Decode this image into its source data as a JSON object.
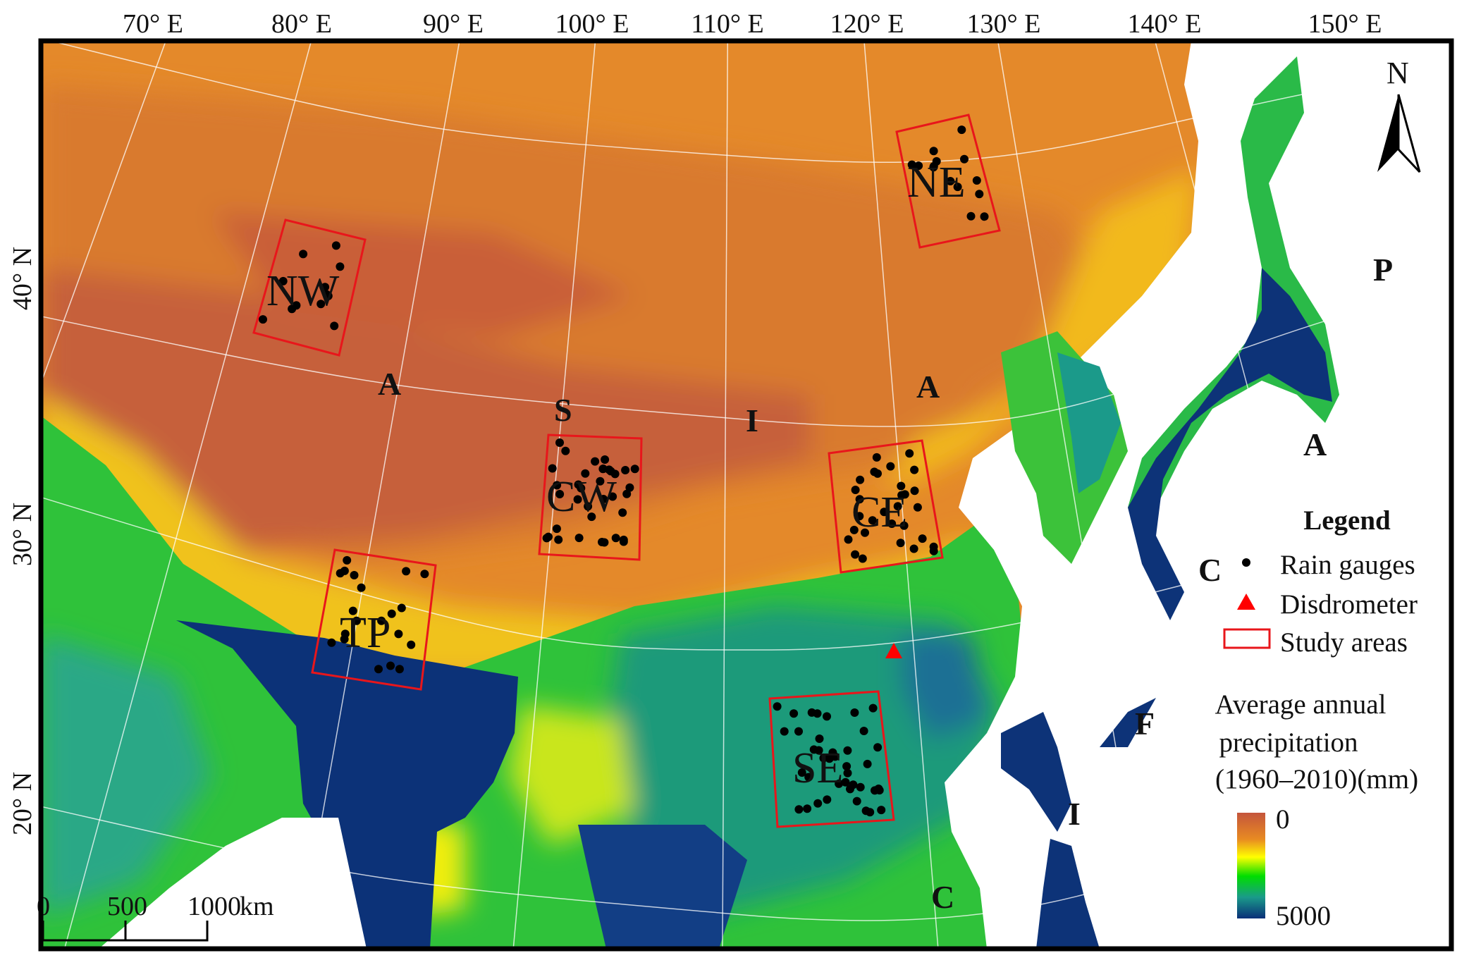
{
  "map": {
    "longitude_labels": [
      "70° E",
      "80° E",
      "90° E",
      "100° E",
      "110° E",
      "120° E",
      "130° E",
      "140° E",
      "150° E"
    ],
    "latitude_labels": [
      "40° N",
      "30° N",
      "20° N"
    ],
    "study_areas": [
      {
        "id": "NW",
        "label": "NW"
      },
      {
        "id": "NE",
        "label": "NE"
      },
      {
        "id": "CW",
        "label": "CW"
      },
      {
        "id": "CE",
        "label": "CE"
      },
      {
        "id": "TP",
        "label": "TP"
      },
      {
        "id": "SE",
        "label": "SE"
      }
    ],
    "ocean_labels": {
      "asia": [
        "A",
        "S",
        "I",
        "A"
      ],
      "pacific": [
        "P",
        "A",
        "C",
        "I",
        "F",
        "I",
        "C"
      ]
    },
    "north_arrow_label": "N",
    "scale_bar": {
      "labels": [
        "0",
        "500",
        "1000"
      ],
      "unit": "km"
    },
    "colors": {
      "study_area_outline": "#e8161b",
      "rain_gauge": "#000000",
      "disdrometer": "#ff0000",
      "colorbar": [
        "#c4553c",
        "#e88a22",
        "#ffff00",
        "#00dd00",
        "#1a9a8a",
        "#0a2f78"
      ]
    }
  },
  "legend": {
    "title": "Legend",
    "items": [
      {
        "symbol": "dot",
        "label": "Rain gauges"
      },
      {
        "symbol": "triangle",
        "label": "Disdrometer"
      },
      {
        "symbol": "rect",
        "label": "Study areas"
      }
    ],
    "colorbar": {
      "title_lines": [
        "Average annual",
        "precipitation",
        "(1960–2010)(mm)"
      ],
      "min_label": "0",
      "max_label": "5000",
      "range": [
        0,
        5000
      ]
    }
  }
}
